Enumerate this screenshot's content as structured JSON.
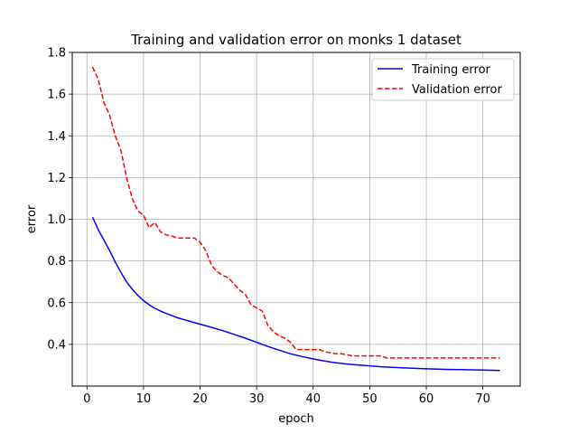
{
  "chart_data": {
    "type": "line",
    "title": "Training and validation error on monks 1 dataset",
    "xlabel": "epoch",
    "ylabel": "error",
    "xlim": [
      -2.6,
      76.6
    ],
    "ylim": [
      0.2,
      1.8
    ],
    "xticks": [
      0,
      10,
      20,
      30,
      40,
      50,
      60,
      70
    ],
    "yticks": [
      0.4,
      0.6,
      0.8,
      1.0,
      1.2,
      1.4,
      1.6,
      1.8
    ],
    "ytick_labels": [
      "0.4",
      "0.6",
      "0.8",
      "1.0",
      "1.2",
      "1.4",
      "1.6",
      "1.8"
    ],
    "grid": true,
    "legend_position": "top-right",
    "series": [
      {
        "name": "Training error",
        "color": "#0000ff",
        "style": "solid",
        "x": [
          1,
          2,
          3,
          4,
          5,
          6,
          7,
          8,
          9,
          10,
          11,
          12,
          13,
          14,
          15,
          16,
          17,
          18,
          19,
          20,
          22,
          24,
          26,
          28,
          30,
          32,
          34,
          36,
          38,
          40,
          42,
          44,
          46,
          48,
          50,
          52,
          54,
          56,
          58,
          60,
          62,
          64,
          66,
          68,
          70,
          73
        ],
        "y": [
          1.01,
          0.95,
          0.9,
          0.85,
          0.795,
          0.745,
          0.7,
          0.665,
          0.635,
          0.61,
          0.59,
          0.573,
          0.56,
          0.548,
          0.538,
          0.528,
          0.52,
          0.512,
          0.504,
          0.497,
          0.482,
          0.466,
          0.448,
          0.43,
          0.41,
          0.39,
          0.372,
          0.355,
          0.342,
          0.33,
          0.32,
          0.312,
          0.306,
          0.301,
          0.297,
          0.293,
          0.29,
          0.287,
          0.285,
          0.283,
          0.281,
          0.28,
          0.279,
          0.278,
          0.277,
          0.275
        ]
      },
      {
        "name": "Validation error",
        "color": "#ff0000",
        "style": "dashed",
        "x": [
          1,
          2,
          3,
          4,
          5,
          6,
          7,
          8,
          9,
          10,
          11,
          12,
          13,
          14,
          15,
          16,
          17,
          18,
          19,
          20,
          21,
          22,
          23,
          24,
          25,
          26,
          27,
          28,
          29,
          30,
          31,
          32,
          33,
          34,
          35,
          36,
          37,
          38,
          39,
          40,
          41,
          42,
          43,
          44,
          45,
          46,
          47,
          48,
          49,
          50,
          51,
          52,
          53,
          54,
          55,
          60,
          65,
          70,
          73
        ],
        "y": [
          1.73,
          1.67,
          1.56,
          1.5,
          1.4,
          1.33,
          1.2,
          1.1,
          1.04,
          1.02,
          0.96,
          0.985,
          0.94,
          0.925,
          0.92,
          0.91,
          0.91,
          0.91,
          0.91,
          0.89,
          0.85,
          0.78,
          0.75,
          0.73,
          0.72,
          0.69,
          0.66,
          0.64,
          0.59,
          0.575,
          0.56,
          0.49,
          0.46,
          0.44,
          0.43,
          0.41,
          0.375,
          0.375,
          0.375,
          0.375,
          0.375,
          0.365,
          0.36,
          0.355,
          0.355,
          0.35,
          0.345,
          0.345,
          0.345,
          0.345,
          0.345,
          0.345,
          0.335,
          0.335,
          0.335,
          0.335,
          0.335,
          0.335,
          0.335
        ]
      }
    ]
  }
}
